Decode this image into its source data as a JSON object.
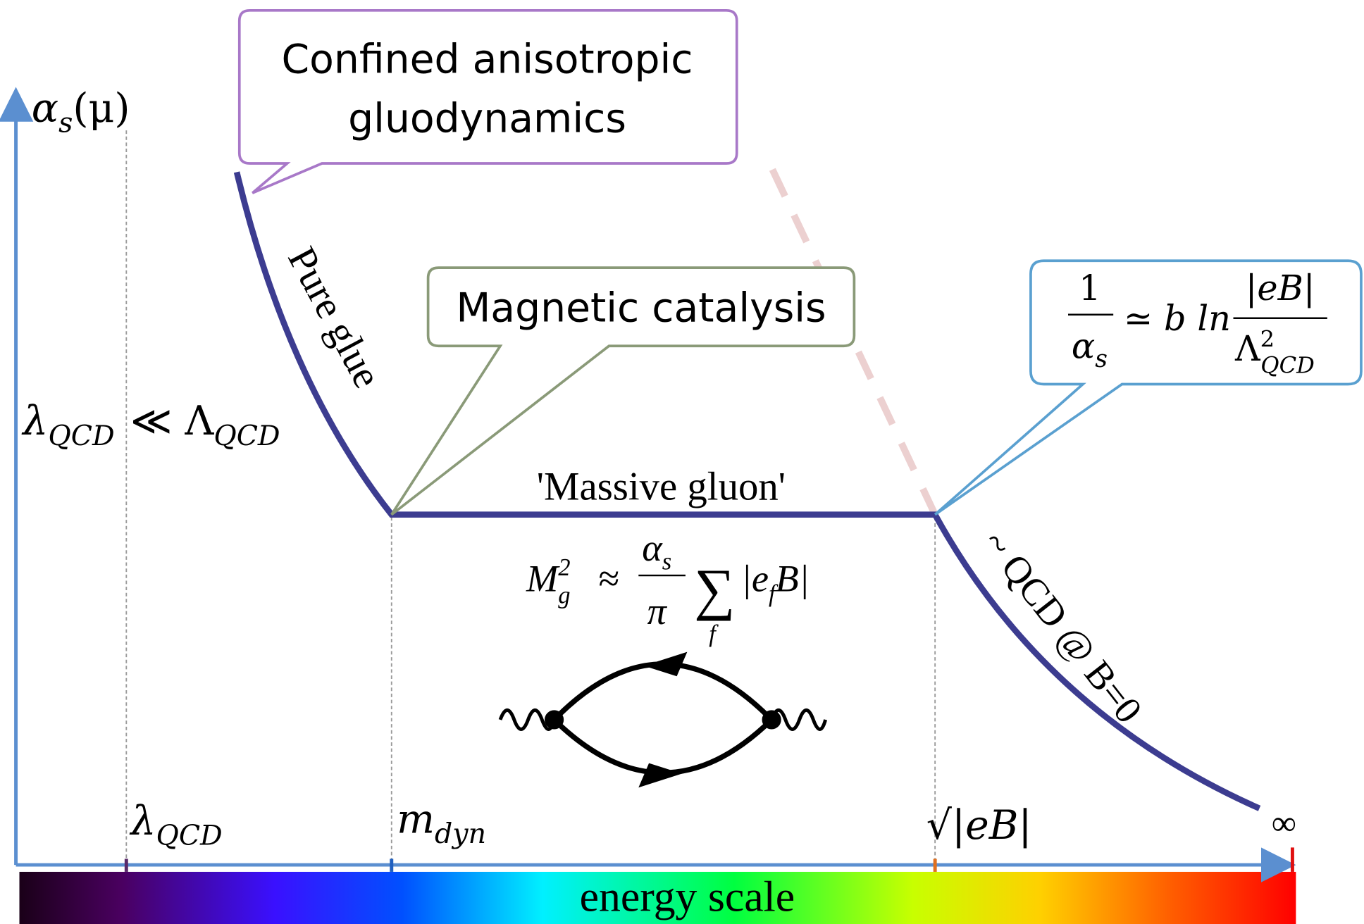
{
  "y_axis": {
    "symbol": "α",
    "sub": "s",
    "arg": "(μ)"
  },
  "x_axis": {
    "label": "energy scale",
    "ticks": [
      {
        "symbol": "λ",
        "sub": "QCD"
      },
      {
        "symbol": "m",
        "sub": "dyn"
      },
      {
        "symbol": "√|eB|"
      },
      {
        "symbol": "∞"
      }
    ]
  },
  "relation": {
    "left": "λ",
    "left_sub": "QCD",
    "operator": "≪ Λ",
    "right_sub": "QCD"
  },
  "callouts": [
    {
      "lines": [
        "Confined anisotropic",
        "gluodynamics"
      ]
    },
    {
      "lines": [
        "Magnetic catalysis"
      ]
    },
    {
      "numerator": "1",
      "denominator": "α",
      "denominator_sub": "s",
      "relation": "≃ b ln",
      "right_numerator": "|eB|",
      "right_denominator": "Λ",
      "right_denominator_sup": "2",
      "right_denominator_sub": "QCD"
    }
  ],
  "curve_labels": [
    "Pure glue",
    "'Massive gluon'",
    "~ QCD @ B=0"
  ],
  "mass_formula": {
    "left": "M",
    "left_sup": "2",
    "left_sub": "g",
    "approx": "≈",
    "numerator": "α",
    "numerator_sub": "s",
    "denominator": "π",
    "sum": "∑",
    "sum_sub": "f",
    "term": "|e",
    "term_sub": "f",
    "term_end": "B|"
  }
}
